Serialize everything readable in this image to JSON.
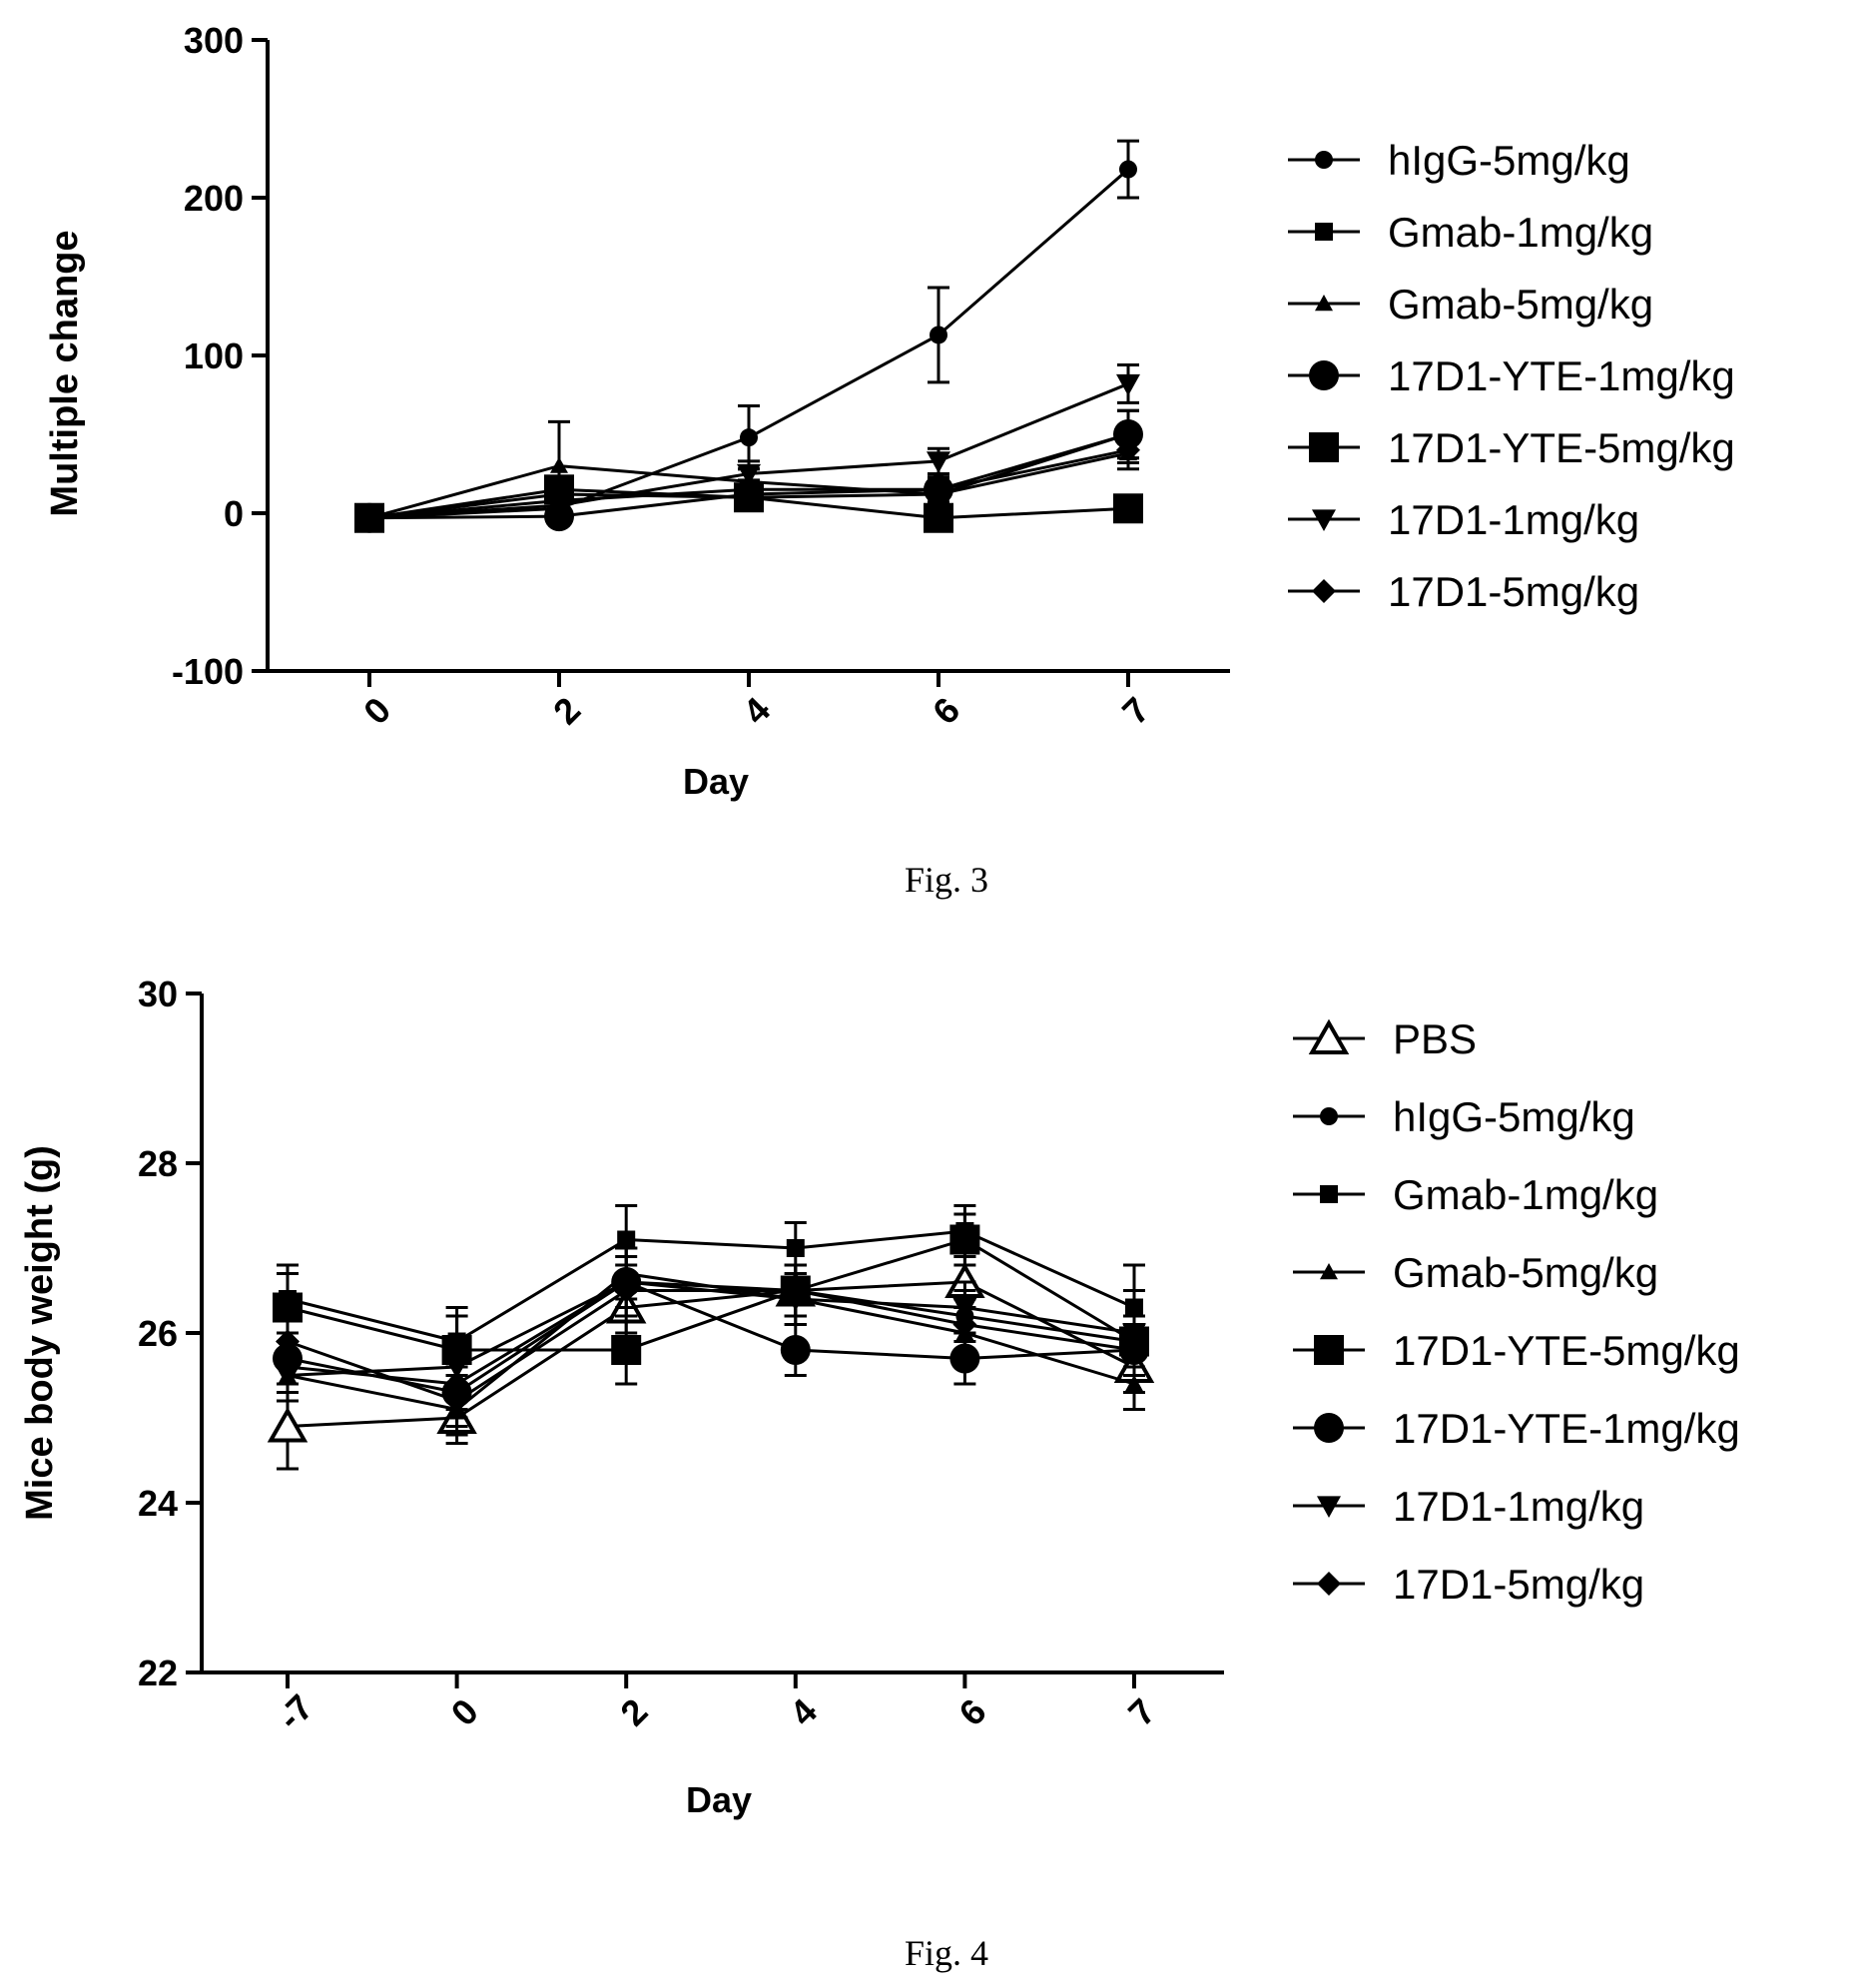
{
  "chart_data": [
    {
      "type": "line",
      "caption": "Fig. 3",
      "xlabel": "Day",
      "ylabel": "Multiple change",
      "ylim": [
        -100,
        300
      ],
      "yticks": [
        -100,
        0,
        100,
        200,
        300
      ],
      "categories": [
        "0",
        "2",
        "4",
        "6",
        "7"
      ],
      "series": [
        {
          "name": "hIgG-5mg/kg",
          "marker": "circle-small",
          "values": [
            -3,
            3,
            48,
            113,
            218
          ],
          "errors": [
            3,
            10,
            20,
            30,
            18
          ]
        },
        {
          "name": "Gmab-1mg/kg",
          "marker": "square-small",
          "values": [
            -3,
            12,
            10,
            12,
            50
          ],
          "errors": [
            3,
            10,
            8,
            10,
            15
          ]
        },
        {
          "name": "Gmab-5mg/kg",
          "marker": "triangle-small",
          "values": [
            -3,
            30,
            20,
            12,
            38
          ],
          "errors": [
            3,
            28,
            8,
            8,
            10
          ]
        },
        {
          "name": "17D1-YTE-1mg/kg",
          "marker": "circle",
          "values": [
            -3,
            -2,
            12,
            15,
            50
          ],
          "errors": [
            3,
            5,
            6,
            8,
            15
          ]
        },
        {
          "name": "17D1-YTE-5mg/kg",
          "marker": "square",
          "values": [
            -3,
            15,
            10,
            -3,
            3
          ],
          "errors": [
            3,
            8,
            5,
            4,
            3
          ]
        },
        {
          "name": "17D1-1mg/kg",
          "marker": "triangle-down",
          "values": [
            -3,
            5,
            25,
            33,
            82
          ],
          "errors": [
            3,
            6,
            8,
            8,
            12
          ]
        },
        {
          "name": "17D1-5mg/kg",
          "marker": "diamond",
          "values": [
            -3,
            8,
            15,
            15,
            40
          ],
          "errors": [
            3,
            6,
            6,
            6,
            8
          ]
        }
      ]
    },
    {
      "type": "line",
      "caption": "Fig. 4",
      "xlabel": "Day",
      "ylabel": "Mice body weight (g)",
      "ylim": [
        22,
        30
      ],
      "yticks": [
        22,
        24,
        26,
        28,
        30
      ],
      "categories": [
        "-7",
        "0",
        "2",
        "4",
        "6",
        "7"
      ],
      "series": [
        {
          "name": "PBS",
          "marker": "triangle-open",
          "values": [
            24.9,
            25.0,
            26.3,
            26.5,
            26.6,
            25.6
          ],
          "errors": [
            0.5,
            0.3,
            0.3,
            0.3,
            0.3,
            0.3
          ]
        },
        {
          "name": "hIgG-5mg/kg",
          "marker": "circle-small",
          "values": [
            25.6,
            25.4,
            26.6,
            26.5,
            26.2,
            25.9
          ],
          "errors": [
            0.3,
            0.3,
            0.3,
            0.3,
            0.3,
            0.3
          ]
        },
        {
          "name": "Gmab-1mg/kg",
          "marker": "square-small",
          "values": [
            26.4,
            25.9,
            27.1,
            27.0,
            27.2,
            26.3
          ],
          "errors": [
            0.4,
            0.4,
            0.4,
            0.3,
            0.3,
            0.5
          ]
        },
        {
          "name": "Gmab-5mg/kg",
          "marker": "triangle-small",
          "values": [
            25.5,
            25.1,
            26.7,
            26.4,
            26.0,
            25.4
          ],
          "errors": [
            0.3,
            0.3,
            0.3,
            0.3,
            0.3,
            0.3
          ]
        },
        {
          "name": "17D1-YTE-5mg/kg",
          "marker": "square",
          "values": [
            26.3,
            25.8,
            25.8,
            26.5,
            27.1,
            25.9
          ],
          "errors": [
            0.4,
            0.4,
            0.4,
            0.3,
            0.3,
            0.3
          ]
        },
        {
          "name": "17D1-YTE-1mg/kg",
          "marker": "circle",
          "values": [
            25.7,
            25.3,
            26.6,
            25.8,
            25.7,
            25.8
          ],
          "errors": [
            0.3,
            0.3,
            0.4,
            0.3,
            0.3,
            0.3
          ]
        },
        {
          "name": "17D1-1mg/kg",
          "marker": "triangle-down",
          "values": [
            25.5,
            25.6,
            26.6,
            26.4,
            26.3,
            26.0
          ],
          "errors": [
            0.3,
            0.3,
            0.4,
            0.3,
            0.3,
            0.5
          ]
        },
        {
          "name": "17D1-5mg/kg",
          "marker": "diamond",
          "values": [
            25.9,
            25.2,
            26.5,
            26.5,
            26.1,
            25.8
          ],
          "errors": [
            0.3,
            0.3,
            0.3,
            0.3,
            0.3,
            0.3
          ]
        }
      ]
    }
  ]
}
